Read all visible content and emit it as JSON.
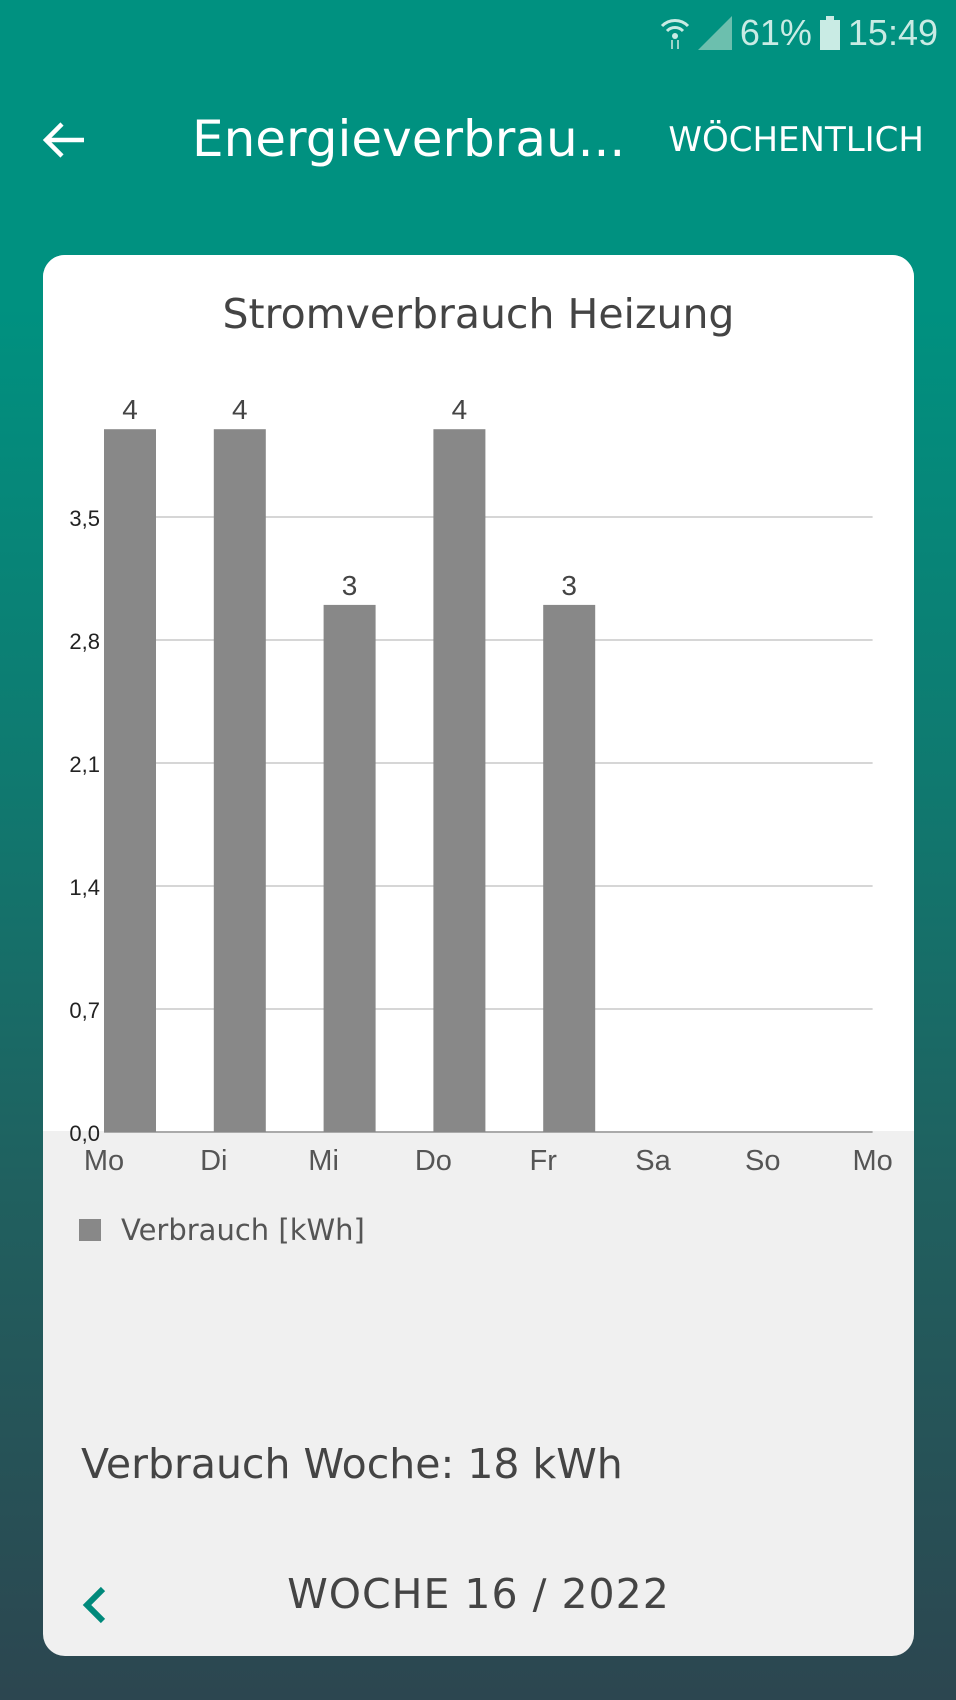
{
  "status_bar": {
    "battery": "61%",
    "time": "15:49",
    "icons": [
      "wifi-icon",
      "signal-icon",
      "battery-icon"
    ]
  },
  "app_bar": {
    "title": "Energieverbrau...",
    "action": "WÖCHENTLICH",
    "back_icon": "arrow-left-icon"
  },
  "card": {
    "legend_label": "Verbrauch [kWh]",
    "total": "Verbrauch Woche: 18 kWh",
    "week": "WOCHE 16 / 2022",
    "prev_icon": "chevron-left-icon"
  },
  "colors": {
    "accent": "#009180",
    "bar": "#888888",
    "prev_chevron": "#00897b"
  },
  "chart_data": {
    "type": "bar",
    "title": "Stromverbrauch Heizung",
    "categories": [
      "Mo",
      "Di",
      "Mi",
      "Do",
      "Fr",
      "Sa",
      "So",
      "Mo"
    ],
    "series": [
      {
        "name": "Verbrauch [kWh]",
        "values": [
          4,
          4,
          3,
          4,
          3,
          null,
          null,
          null
        ]
      }
    ],
    "data_labels": [
      "4",
      "4",
      "3",
      "4",
      "3"
    ],
    "y_ticks": [
      "0,0",
      "0,7",
      "1,4",
      "2,1",
      "2,8",
      "3,5"
    ],
    "ylim": [
      0,
      4
    ],
    "grid": true,
    "legend": "bottom-left"
  }
}
